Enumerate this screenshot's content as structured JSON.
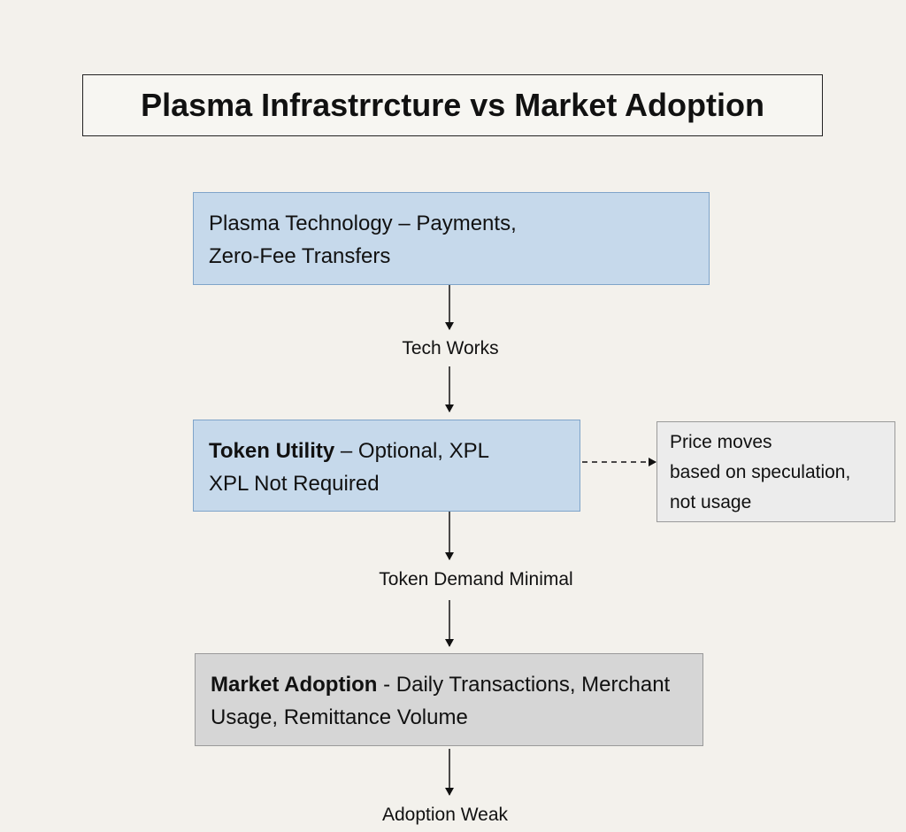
{
  "title": "Plasma Infrastrrcture vs Market Adoption",
  "nodes": {
    "technology": {
      "line1": "Plasma Technology – Payments,",
      "line2": "Zero-Fee Transfers"
    },
    "token_utility": {
      "bold": "Token Utility",
      "line1_rest": " – Optional, XPL",
      "line2": "XPL Not Required"
    },
    "price_note": {
      "line1": "Price moves",
      "line2": "based on speculation,",
      "line3": "not usage"
    },
    "market_adoption": {
      "bold": "Market Adoption",
      "line1_rest": " - Daily Transactions, Merchant",
      "line2": "Usage, Remittance Volume"
    }
  },
  "edge_labels": {
    "tech_works": "Tech Works",
    "token_demand": "Token Demand Minimal",
    "adoption_weak": "Adoption Weak"
  },
  "colors": {
    "blue_fill": "#c6d9eb",
    "blue_border": "#7fa4c9",
    "gray_fill": "#d6d6d6",
    "background": "#f3f1ec"
  }
}
